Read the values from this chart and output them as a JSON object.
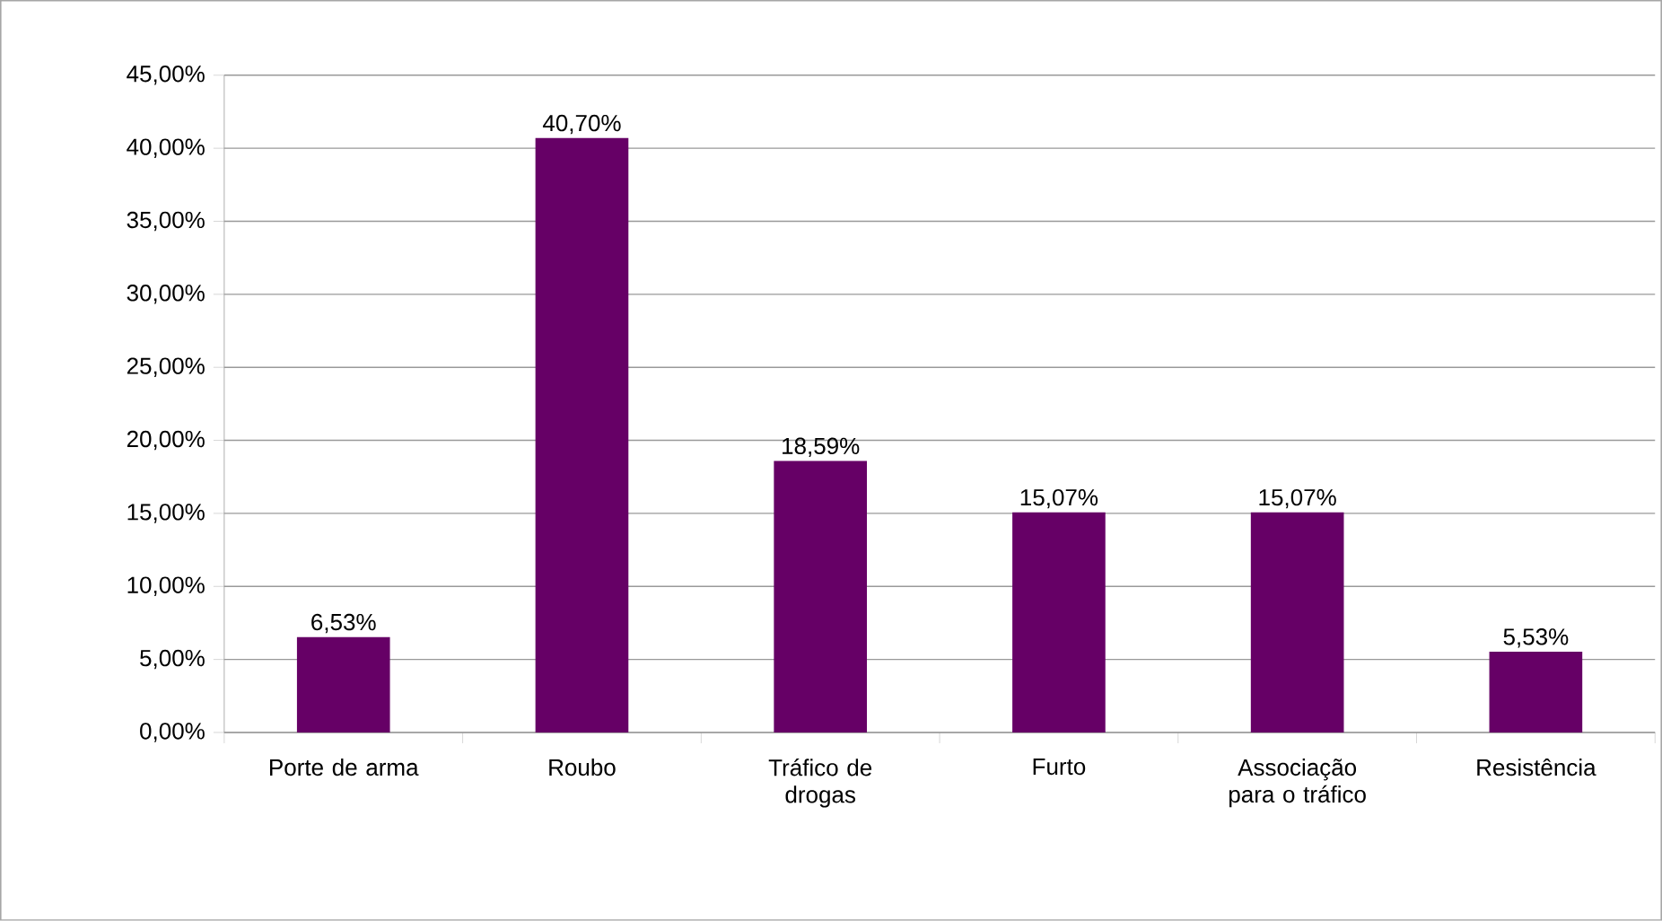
{
  "chart_data": {
    "type": "bar",
    "categories": [
      "Porte de arma",
      "Roubo",
      "Tráfico de drogas",
      "Furto",
      "Associação para o tráfico",
      "Resistência"
    ],
    "values": [
      6.53,
      40.7,
      18.59,
      15.07,
      15.07,
      5.53
    ],
    "value_labels": [
      "6,53%",
      "40,70%",
      "18,59%",
      "15,07%",
      "15,07%",
      "5,53%"
    ],
    "color": "#660066",
    "ylim": [
      0,
      45
    ],
    "yticks": [
      {
        "value": 0,
        "label": "0,00%"
      },
      {
        "value": 5,
        "label": "5,00%"
      },
      {
        "value": 10,
        "label": "10,00%"
      },
      {
        "value": 15,
        "label": "15,00%"
      },
      {
        "value": 20,
        "label": "20,00%"
      },
      {
        "value": 25,
        "label": "25,00%"
      },
      {
        "value": 30,
        "label": "30,00%"
      },
      {
        "value": 35,
        "label": "35,00%"
      },
      {
        "value": 40,
        "label": "40,00%"
      },
      {
        "value": 45,
        "label": "45,00%"
      }
    ],
    "grid": "y"
  }
}
